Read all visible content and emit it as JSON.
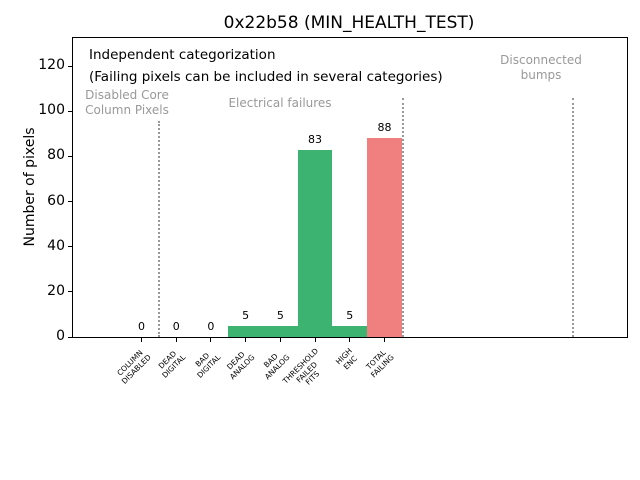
{
  "chart_data": {
    "type": "bar",
    "title": "0x22b58 (MIN_HEALTH_TEST)",
    "ylabel": "Number of pixels",
    "xlabel": "",
    "categories": [
      "COLUMN\nDISABLED",
      "DEAD\nDIGITAL",
      "BAD\nDIGITAL",
      "DEAD\nANALOG",
      "BAD\nANALOG",
      "THRESHOLD\nFAILED\nFITS",
      "HIGH\nENC",
      "TOTAL\nFAILING"
    ],
    "values": [
      0,
      0,
      0,
      5,
      5,
      83,
      5,
      88
    ],
    "bar_colors": [
      "#3cb371",
      "#3cb371",
      "#3cb371",
      "#3cb371",
      "#3cb371",
      "#3cb371",
      "#3cb371",
      "#f08080"
    ],
    "ylim": [
      0,
      132
    ],
    "yticks": [
      0,
      20,
      40,
      60,
      80,
      100,
      120
    ],
    "grid": false,
    "legend": null,
    "annotations": {
      "note_line1": "Independent categorization",
      "note_line2": "(Failing pixels can be included in several categories)",
      "sections": [
        {
          "label": "Disabled Core\nColumn Pixels"
        },
        {
          "label": "Electrical failures"
        },
        {
          "label": "Disconnected\nbumps"
        }
      ]
    },
    "colors": {
      "bar_green": "#3cb371",
      "bar_red": "#f08080",
      "annotation_gray": "#999999",
      "axis_black": "#000000"
    }
  }
}
